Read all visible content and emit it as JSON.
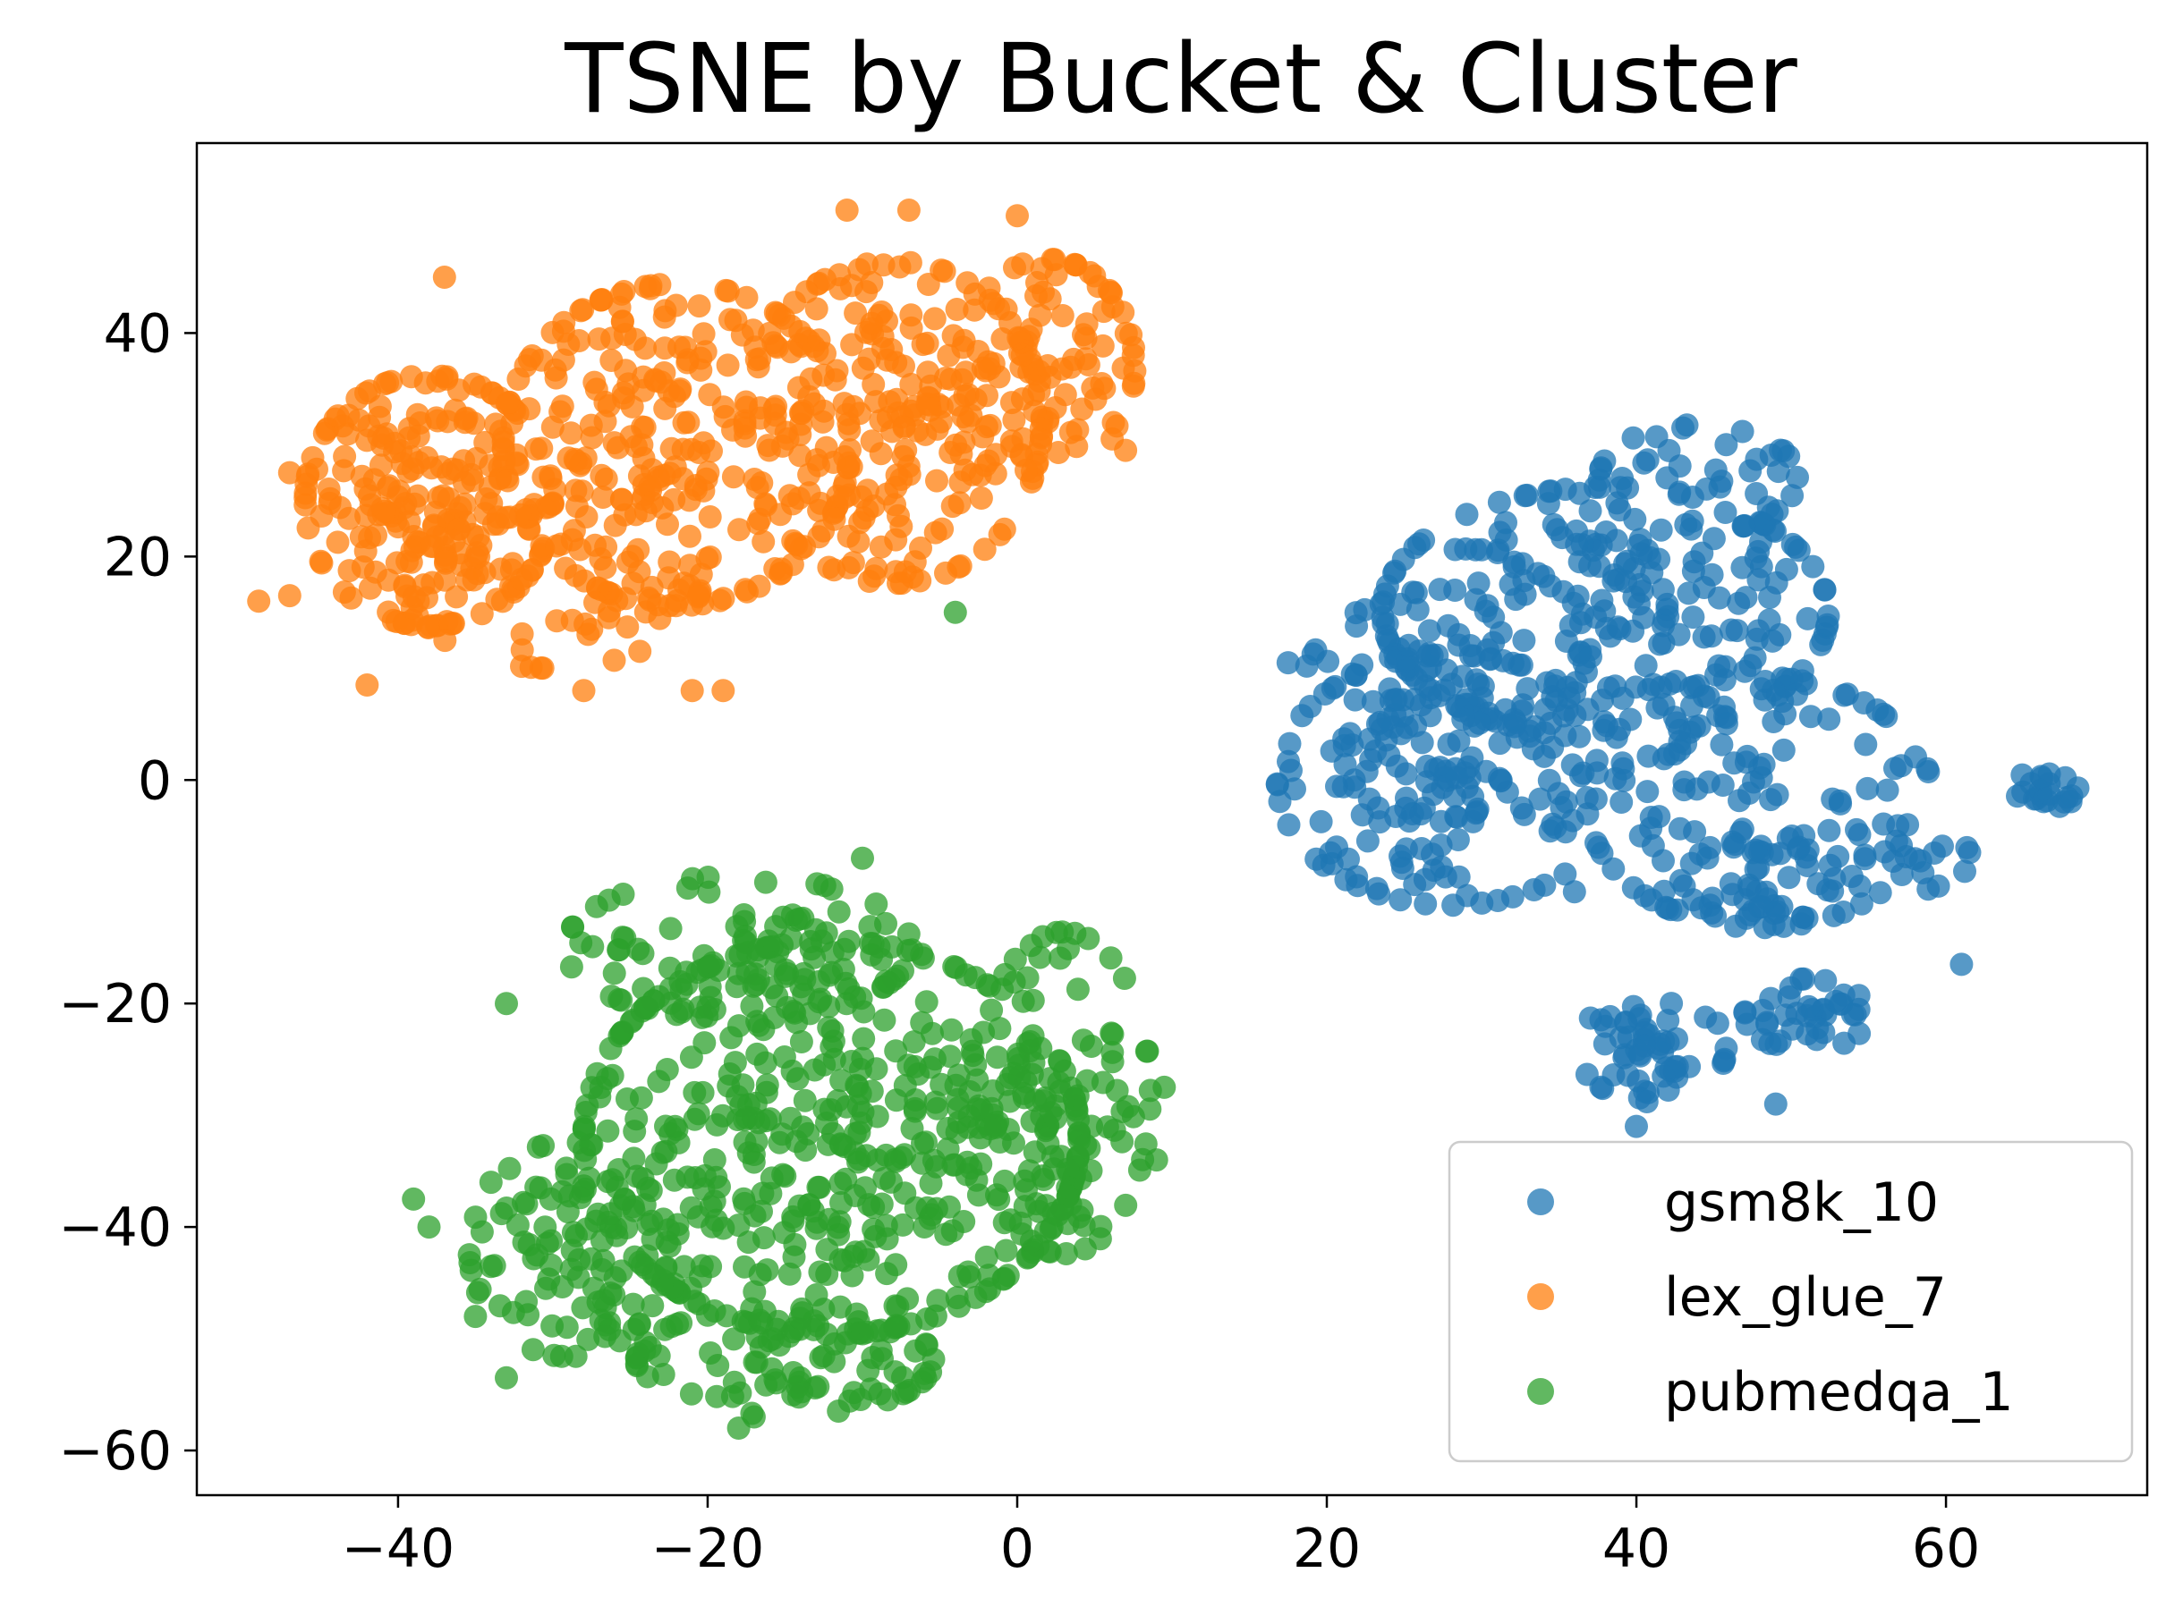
{
  "chart_data": {
    "type": "scatter",
    "title": "TSNE by Bucket & Cluster",
    "xlabel": "",
    "ylabel": "",
    "xlim": [
      -53,
      73
    ],
    "ylim": [
      -64,
      57
    ],
    "xticks": [
      -40,
      -20,
      0,
      20,
      40,
      60
    ],
    "yticks": [
      -60,
      -40,
      -20,
      0,
      20,
      40
    ],
    "xtick_labels": [
      "−40",
      "−20",
      "0",
      "20",
      "40",
      "60"
    ],
    "ytick_labels": [
      "−60",
      "−40",
      "−20",
      "0",
      "20",
      "40"
    ],
    "grid": false,
    "legend_position": "lower-right",
    "marker_alpha": 0.75,
    "series": [
      {
        "name": "gsm8k_10",
        "color": "#1f77b4",
        "clusters": [
          {
            "center": [
              38,
              15
            ],
            "spread": [
              9,
              7
            ],
            "count": 260
          },
          {
            "center": [
              28,
              0
            ],
            "spread": [
              7,
              7
            ],
            "count": 150
          },
          {
            "center": [
              48,
              -2
            ],
            "spread": [
              7,
              7
            ],
            "count": 130
          },
          {
            "center": [
              24,
              3
            ],
            "spread": [
              4,
              8
            ],
            "count": 70
          },
          {
            "center": [
              41,
              -24
            ],
            "spread": [
              3,
              3
            ],
            "count": 55
          },
          {
            "center": [
              51,
              -21
            ],
            "spread": [
              2.5,
              2
            ],
            "count": 40
          },
          {
            "center": [
              48,
              -9
            ],
            "spread": [
              3,
              2.5
            ],
            "count": 40
          },
          {
            "center": [
              66,
              -1
            ],
            "spread": [
              1.6,
              1
            ],
            "count": 22
          },
          {
            "center": [
              56,
              -7
            ],
            "spread": [
              3.5,
              2
            ],
            "count": 18
          },
          {
            "center": [
              44,
              27
            ],
            "spread": [
              4,
              3
            ],
            "count": 40
          }
        ],
        "points": [
          [
            17.5,
            10.5
          ],
          [
            61,
            -16.5
          ],
          [
            43,
            31.5
          ],
          [
            36,
            -10
          ],
          [
            49,
            -29
          ],
          [
            40,
            -31
          ]
        ]
      },
      {
        "name": "lex_glue_7",
        "color": "#ff7f0e",
        "clusters": [
          {
            "center": [
              -38,
              25
            ],
            "spread": [
              5,
              7
            ],
            "count": 220
          },
          {
            "center": [
              -22,
              30
            ],
            "spread": [
              7,
              9
            ],
            "count": 250
          },
          {
            "center": [
              -8,
              32
            ],
            "spread": [
              6,
              9
            ],
            "count": 230
          },
          {
            "center": [
              2,
              37
            ],
            "spread": [
              3.5,
              6
            ],
            "count": 90
          },
          {
            "center": [
              -30,
              18
            ],
            "spread": [
              6,
              5
            ],
            "count": 80
          }
        ],
        "points": [
          [
            -47,
            27.5
          ],
          [
            -47,
            16.5
          ],
          [
            -42,
            8.5
          ],
          [
            -28,
            8
          ],
          [
            -21,
            8
          ],
          [
            -19,
            8
          ],
          [
            -11,
            51
          ],
          [
            -7,
            51
          ],
          [
            0,
            50.5
          ],
          [
            7.5,
            38
          ],
          [
            7,
            29.5
          ],
          [
            -37,
            45
          ],
          [
            -49,
            16
          ]
        ]
      },
      {
        "name": "pubmedqa_1",
        "color": "#2ca02c",
        "clusters": [
          {
            "center": [
              -12,
              -32
            ],
            "spread": [
              10,
              11
            ],
            "count": 480
          },
          {
            "center": [
              -29,
              -42
            ],
            "spread": [
              4,
              6
            ],
            "count": 110
          },
          {
            "center": [
              -15,
              -52
            ],
            "spread": [
              6,
              3
            ],
            "count": 90
          },
          {
            "center": [
              3,
              -28
            ],
            "spread": [
              3.5,
              9
            ],
            "count": 110
          },
          {
            "center": [
              -18,
              -15
            ],
            "spread": [
              7,
              4
            ],
            "count": 90
          }
        ],
        "points": [
          [
            -4,
            15
          ],
          [
            -39,
            -37.5
          ],
          [
            -38,
            -40
          ],
          [
            -33,
            -53.5
          ],
          [
            -33,
            -20
          ],
          [
            -10,
            -7
          ],
          [
            -18,
            -58
          ],
          [
            -17,
            -57
          ],
          [
            9.5,
            -27.5
          ],
          [
            9,
            -34
          ],
          [
            -35,
            -48
          ]
        ]
      }
    ]
  }
}
